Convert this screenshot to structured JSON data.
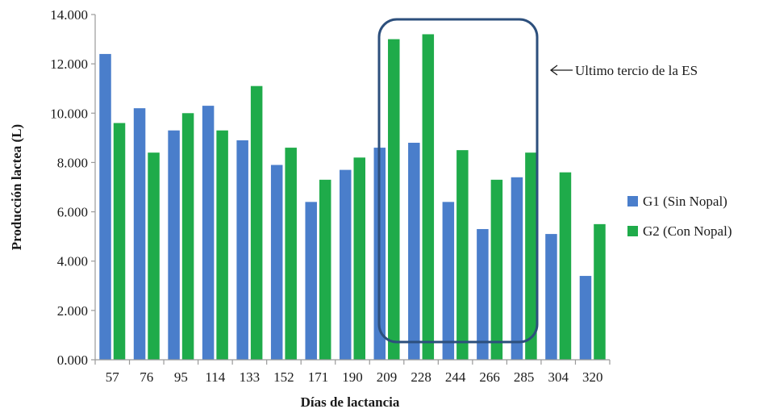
{
  "chart_data": {
    "type": "bar",
    "title": "",
    "xlabel": "Días de lactancia",
    "ylabel": "Producción lactea (L)",
    "ylim": [
      0,
      14
    ],
    "yticks": [
      "0.000",
      "2.000",
      "4.000",
      "6.000",
      "8.000",
      "10.000",
      "12.000",
      "14.000"
    ],
    "categories": [
      "57",
      "76",
      "95",
      "114",
      "133",
      "152",
      "171",
      "190",
      "209",
      "228",
      "244",
      "266",
      "285",
      "304",
      "320"
    ],
    "series": [
      {
        "name": "G1 (Sin Nopal)",
        "color": "#4a7ecb",
        "values": [
          12.4,
          10.2,
          9.3,
          10.3,
          8.9,
          7.9,
          6.4,
          7.7,
          8.6,
          8.8,
          6.4,
          5.3,
          7.4,
          5.1,
          3.4
        ]
      },
      {
        "name": "G2 (Con Nopal)",
        "color": "#1fab4a",
        "values": [
          9.6,
          8.4,
          10.0,
          9.3,
          11.1,
          8.6,
          7.3,
          8.2,
          13.0,
          13.2,
          8.5,
          7.3,
          8.4,
          7.6,
          5.5
        ]
      }
    ],
    "annotation": {
      "text": "Ultimo tercio de la ES",
      "highlight_categories": [
        "209",
        "285"
      ],
      "color": "#2c4f7c"
    },
    "grid": false,
    "legend_position": "right"
  }
}
